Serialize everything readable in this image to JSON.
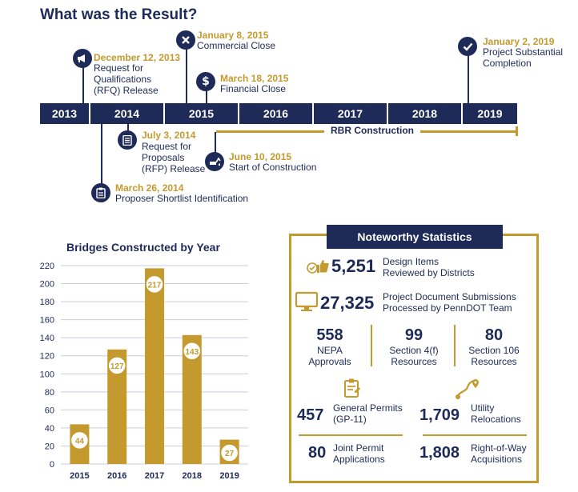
{
  "page": {
    "title": "What was the Result?"
  },
  "timeline": {
    "years": [
      "2013",
      "2014",
      "2015",
      "2016",
      "2017",
      "2018",
      "2019"
    ],
    "construction_label": "RBR Construction",
    "milestones": [
      {
        "date": "December 12, 2013",
        "desc": [
          "Request for",
          "Qualifications",
          "(RFQ) Release"
        ],
        "icon": "announcement-icon"
      },
      {
        "date": "January 8, 2015",
        "desc": [
          "Commercial Close"
        ],
        "icon": "close-x-icon"
      },
      {
        "date": "March 18, 2015",
        "desc": [
          "Financial Close"
        ],
        "icon": "dollar-icon"
      },
      {
        "date": "January 2, 2019",
        "desc": [
          "Project Substantial",
          "Completion"
        ],
        "icon": "checkmark-icon"
      },
      {
        "date": "July 3, 2014",
        "desc": [
          "Request for",
          "Proposals",
          "(RFP) Release"
        ],
        "icon": "document-icon"
      },
      {
        "date": "June 10, 2015",
        "desc": [
          "Start of Construction"
        ],
        "icon": "excavator-icon"
      },
      {
        "date": "March 26, 2014",
        "desc": [
          "Proposer Shortlist Identification"
        ],
        "icon": "clipboard-icon"
      }
    ]
  },
  "chart_data": {
    "type": "bar",
    "title": "Bridges Constructed by Year",
    "categories": [
      "2015",
      "2016",
      "2017",
      "2018",
      "2019"
    ],
    "values": [
      44,
      127,
      217,
      143,
      27
    ],
    "ylim": [
      0,
      220
    ],
    "yticks": [
      0,
      20,
      40,
      60,
      80,
      100,
      120,
      140,
      160,
      180,
      200,
      220
    ],
    "grid": true,
    "colors": {
      "bar": "#c49a2e",
      "label_bg": "#ffffff",
      "axis_text": "#1e2a57"
    }
  },
  "stats": {
    "header": "Noteworthy Statistics",
    "design_items": {
      "value": "5,251",
      "label": [
        "Design Items",
        "Reviewed by Districts"
      ]
    },
    "submissions": {
      "value": "27,325",
      "label": [
        "Project Document Submissions",
        "Processed by PennDOT Team"
      ]
    },
    "trio": [
      {
        "value": "558",
        "label": [
          "NEPA",
          "Approvals"
        ]
      },
      {
        "value": "99",
        "label": [
          "Section 4(f)",
          "Resources"
        ]
      },
      {
        "value": "80",
        "label": [
          "Section 106",
          "Resources"
        ]
      }
    ],
    "general_permits": {
      "value": "457",
      "label": [
        "General Permits",
        "(GP-11)"
      ]
    },
    "utility": {
      "value": "1,709",
      "label": [
        "Utility",
        "Relocations"
      ]
    },
    "joint": {
      "value": "80",
      "label": [
        "Joint Permit",
        "Applications"
      ]
    },
    "row": {
      "value": "1,808",
      "label": [
        "Right-of-Way",
        "Acquisitions"
      ]
    }
  },
  "colors": {
    "navy": "#1e2a57",
    "gold": "#c49a2e"
  }
}
